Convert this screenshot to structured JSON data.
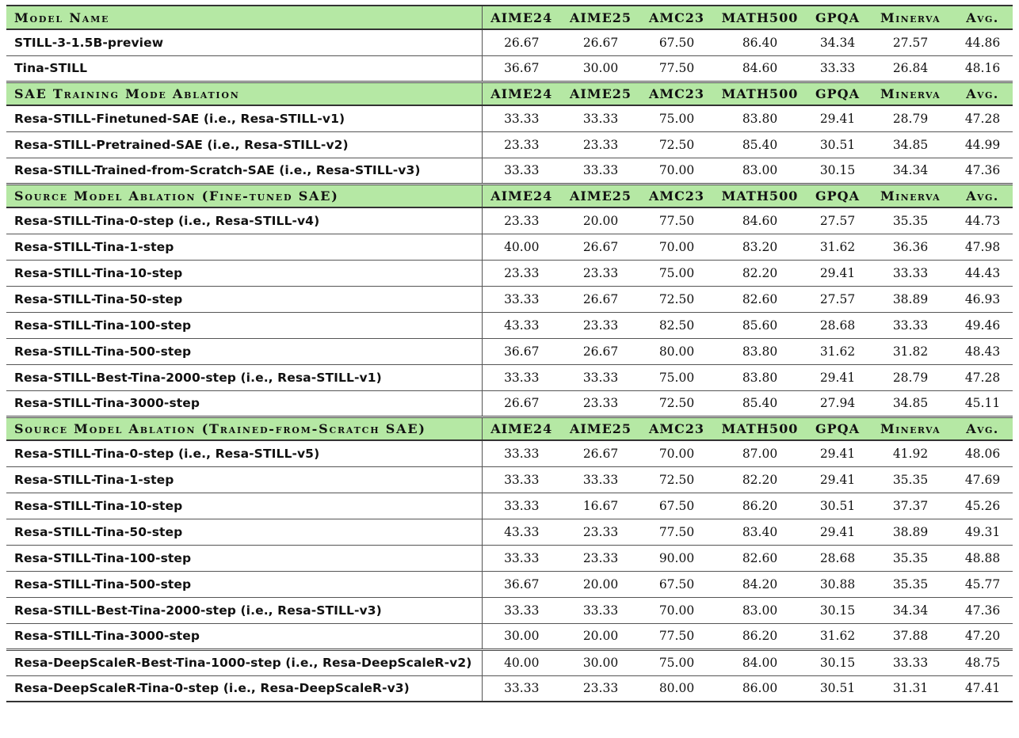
{
  "columns": [
    "AIME24",
    "AIME25",
    "AMC23",
    "MATH500",
    "GPQA",
    "Minerva",
    "Avg."
  ],
  "sections": [
    {
      "title": "Model Name",
      "rows": [
        {
          "name": "STILL-3-1.5B-preview",
          "values": [
            "26.67",
            "26.67",
            "67.50",
            "86.40",
            "34.34",
            "27.57",
            "44.86"
          ]
        },
        {
          "name": "Tina-STILL",
          "values": [
            "36.67",
            "30.00",
            "77.50",
            "84.60",
            "33.33",
            "26.84",
            "48.16"
          ]
        }
      ]
    },
    {
      "title": "SAE Training Mode Ablation",
      "rows": [
        {
          "name": "Resa-STILL-Finetuned-SAE (i.e., Resa-STILL-v1)",
          "values": [
            "33.33",
            "33.33",
            "75.00",
            "83.80",
            "29.41",
            "28.79",
            "47.28"
          ]
        },
        {
          "name": "Resa-STILL-Pretrained-SAE (i.e., Resa-STILL-v2)",
          "values": [
            "23.33",
            "23.33",
            "72.50",
            "85.40",
            "30.51",
            "34.85",
            "44.99"
          ]
        },
        {
          "name": "Resa-STILL-Trained-from-Scratch-SAE (i.e., Resa-STILL-v3)",
          "values": [
            "33.33",
            "33.33",
            "70.00",
            "83.00",
            "30.15",
            "34.34",
            "47.36"
          ]
        }
      ]
    },
    {
      "title": "Source Model Ablation (Fine-tuned SAE)",
      "rows": [
        {
          "name": "Resa-STILL-Tina-0-step (i.e., Resa-STILL-v4)",
          "values": [
            "23.33",
            "20.00",
            "77.50",
            "84.60",
            "27.57",
            "35.35",
            "44.73"
          ]
        },
        {
          "name": "Resa-STILL-Tina-1-step",
          "values": [
            "40.00",
            "26.67",
            "70.00",
            "83.20",
            "31.62",
            "36.36",
            "47.98"
          ]
        },
        {
          "name": "Resa-STILL-Tina-10-step",
          "values": [
            "23.33",
            "23.33",
            "75.00",
            "82.20",
            "29.41",
            "33.33",
            "44.43"
          ]
        },
        {
          "name": "Resa-STILL-Tina-50-step",
          "values": [
            "33.33",
            "26.67",
            "72.50",
            "82.60",
            "27.57",
            "38.89",
            "46.93"
          ]
        },
        {
          "name": "Resa-STILL-Tina-100-step",
          "values": [
            "43.33",
            "23.33",
            "82.50",
            "85.60",
            "28.68",
            "33.33",
            "49.46"
          ]
        },
        {
          "name": "Resa-STILL-Tina-500-step",
          "values": [
            "36.67",
            "26.67",
            "80.00",
            "83.80",
            "31.62",
            "31.82",
            "48.43"
          ]
        },
        {
          "name": "Resa-STILL-Best-Tina-2000-step (i.e., Resa-STILL-v1)",
          "values": [
            "33.33",
            "33.33",
            "75.00",
            "83.80",
            "29.41",
            "28.79",
            "47.28"
          ]
        },
        {
          "name": "Resa-STILL-Tina-3000-step",
          "values": [
            "26.67",
            "23.33",
            "72.50",
            "85.40",
            "27.94",
            "34.85",
            "45.11"
          ]
        }
      ]
    },
    {
      "title": "Source Model Ablation (Trained-from-Scratch SAE)",
      "rows": [
        {
          "name": "Resa-STILL-Tina-0-step (i.e., Resa-STILL-v5)",
          "values": [
            "33.33",
            "26.67",
            "70.00",
            "87.00",
            "29.41",
            "41.92",
            "48.06"
          ]
        },
        {
          "name": "Resa-STILL-Tina-1-step",
          "values": [
            "33.33",
            "33.33",
            "72.50",
            "82.20",
            "29.41",
            "35.35",
            "47.69"
          ]
        },
        {
          "name": "Resa-STILL-Tina-10-step",
          "values": [
            "33.33",
            "16.67",
            "67.50",
            "86.20",
            "30.51",
            "37.37",
            "45.26"
          ]
        },
        {
          "name": "Resa-STILL-Tina-50-step",
          "values": [
            "43.33",
            "23.33",
            "77.50",
            "83.40",
            "29.41",
            "38.89",
            "49.31"
          ]
        },
        {
          "name": "Resa-STILL-Tina-100-step",
          "values": [
            "33.33",
            "23.33",
            "90.00",
            "82.60",
            "28.68",
            "35.35",
            "48.88"
          ]
        },
        {
          "name": "Resa-STILL-Tina-500-step",
          "values": [
            "36.67",
            "20.00",
            "67.50",
            "84.20",
            "30.88",
            "35.35",
            "45.77"
          ]
        },
        {
          "name": "Resa-STILL-Best-Tina-2000-step (i.e., Resa-STILL-v3)",
          "values": [
            "33.33",
            "33.33",
            "70.00",
            "83.00",
            "30.15",
            "34.34",
            "47.36"
          ]
        },
        {
          "name": "Resa-STILL-Tina-3000-step",
          "values": [
            "30.00",
            "20.00",
            "77.50",
            "86.20",
            "31.62",
            "37.88",
            "47.20"
          ]
        }
      ]
    }
  ],
  "extra_rows": [
    {
      "name": "Resa-DeepScaleR-Best-Tina-1000-step (i.e., Resa-DeepScaleR-v2)",
      "values": [
        "40.00",
        "30.00",
        "75.00",
        "84.00",
        "30.15",
        "33.33",
        "48.75"
      ]
    },
    {
      "name": "Resa-DeepScaleR-Tina-0-step (i.e., Resa-DeepScaleR-v3)",
      "values": [
        "33.33",
        "23.33",
        "80.00",
        "86.00",
        "30.51",
        "31.31",
        "47.41"
      ]
    }
  ],
  "style": {
    "header_bg": "#b5e8a4",
    "rule_color": "#333333"
  }
}
